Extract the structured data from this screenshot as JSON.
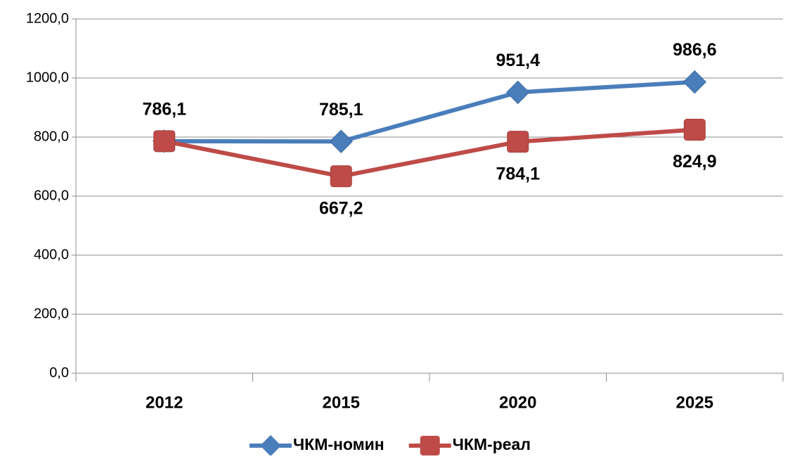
{
  "chart_data": {
    "type": "line",
    "categories": [
      "2012",
      "2015",
      "2020",
      "2025"
    ],
    "series": [
      {
        "name": "ЧКМ-номин",
        "color": "#4a7ebb",
        "marker": "diamond",
        "values": [
          786.1,
          785.1,
          951.4,
          986.6
        ],
        "value_labels": [
          "786,1",
          "785,1",
          "951,4",
          "986,6"
        ]
      },
      {
        "name": "ЧКМ-реал",
        "color": "#be4b48",
        "marker": "square",
        "values": [
          786.1,
          667.2,
          784.1,
          824.9
        ],
        "value_labels": [
          null,
          "667,2",
          "784,1",
          "824,9"
        ]
      }
    ],
    "ylim": [
      0,
      1200
    ],
    "yticks": [
      {
        "value": 0,
        "label": "0,0"
      },
      {
        "value": 200,
        "label": "200,0"
      },
      {
        "value": 400,
        "label": "400,0"
      },
      {
        "value": 600,
        "label": "600,0"
      },
      {
        "value": 800,
        "label": "800,0"
      },
      {
        "value": 1000,
        "label": "1000,0"
      },
      {
        "value": 1200,
        "label": "1200,0"
      }
    ],
    "grid": true,
    "legend": "bottom"
  }
}
